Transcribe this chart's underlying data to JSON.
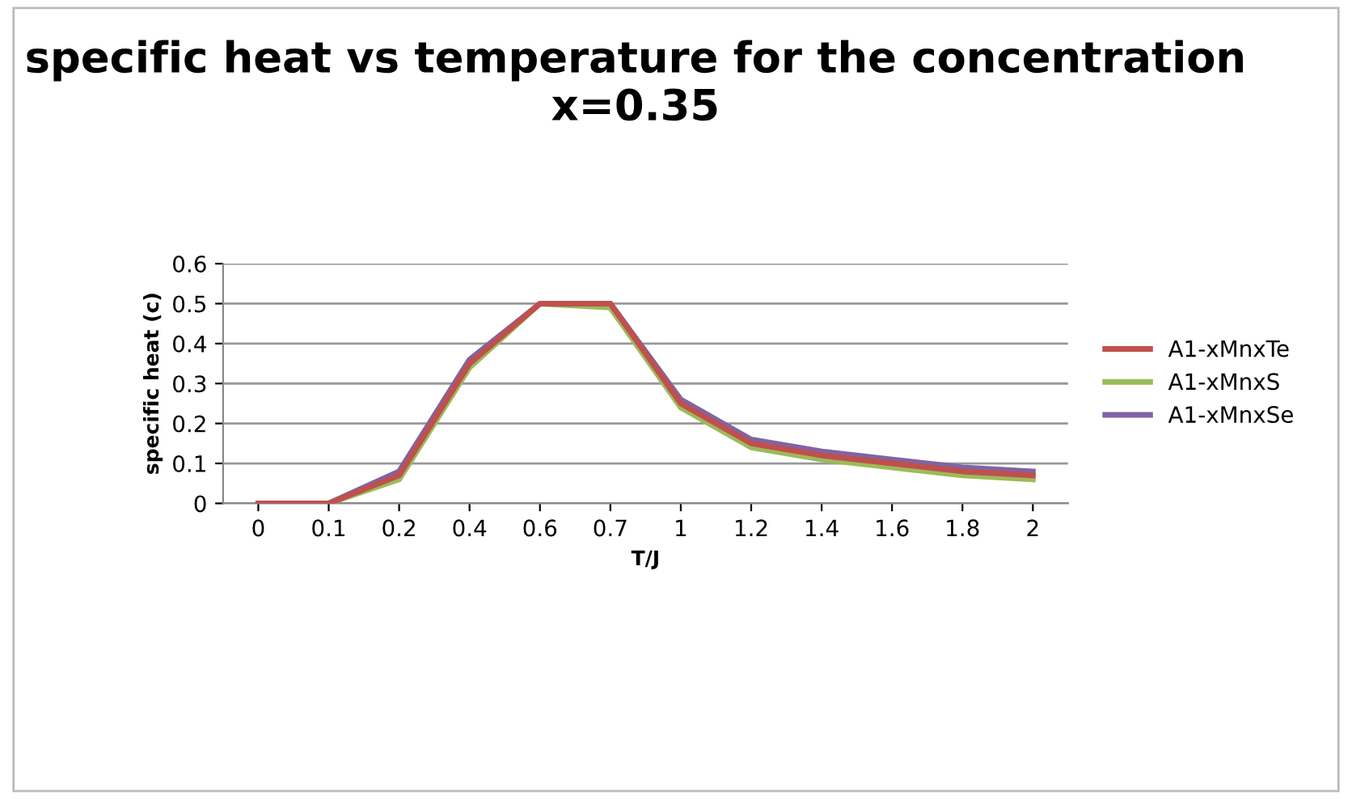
{
  "chart_data": {
    "type": "line",
    "title": "specific heat vs temperature for the concentration x=0.35",
    "xlabel": "T/J",
    "ylabel": "specific heat (c)",
    "categories": [
      "0",
      "0.1",
      "0.2",
      "0.4",
      "0.6",
      "0.7",
      "1",
      "1.2",
      "1.4",
      "1.6",
      "1.8",
      "2"
    ],
    "series": [
      {
        "name": "A1-xMnxTe",
        "color": "#c0504d",
        "values": [
          0,
          0,
          0.07,
          0.35,
          0.5,
          0.5,
          0.25,
          0.15,
          0.12,
          0.1,
          0.08,
          0.07
        ]
      },
      {
        "name": "A1-xMnxS",
        "color": "#9bbb59",
        "values": [
          0,
          0,
          0.06,
          0.34,
          0.5,
          0.49,
          0.24,
          0.14,
          0.11,
          0.09,
          0.07,
          0.06
        ]
      },
      {
        "name": "A1-xMnxSe",
        "color": "#8064a2",
        "values": [
          0,
          0,
          0.08,
          0.36,
          0.5,
          0.5,
          0.26,
          0.16,
          0.13,
          0.11,
          0.09,
          0.08
        ]
      }
    ],
    "ylim": [
      0,
      0.6
    ],
    "yticks": [
      0,
      0.1,
      0.2,
      0.3,
      0.4,
      0.5,
      0.6
    ],
    "grid": "y",
    "legend": "right",
    "marker": "none",
    "line_style": "solid"
  }
}
